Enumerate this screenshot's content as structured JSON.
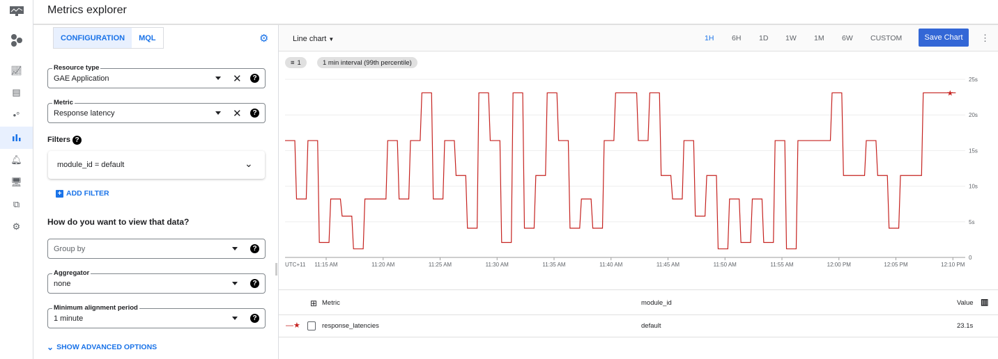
{
  "app": {
    "title": "Metrics explorer"
  },
  "nav": {
    "items": [
      "logo",
      "hexagons",
      "dashboards",
      "overview",
      "services",
      "metrics-explorer",
      "alerting",
      "uptime",
      "groups",
      "settings"
    ],
    "active": "metrics-explorer"
  },
  "config": {
    "tabs": [
      {
        "label": "CONFIGURATION",
        "selected": true
      },
      {
        "label": "MQL",
        "selected": false
      }
    ],
    "resource_type": {
      "label": "Resource type",
      "value": "GAE Application"
    },
    "metric": {
      "label": "Metric",
      "value": "Response latency"
    },
    "filters": {
      "label": "Filters",
      "items": [
        "module_id = default"
      ],
      "add_label": "ADD FILTER"
    },
    "view_heading": "How do you want to view that data?",
    "group_by": {
      "placeholder": "Group by"
    },
    "aggregator": {
      "label": "Aggregator",
      "value": "none"
    },
    "alignment": {
      "label": "Minimum alignment period",
      "value": "1 minute"
    },
    "advanced_label": "SHOW ADVANCED OPTIONS"
  },
  "toolbar": {
    "chart_type": "Line chart",
    "ranges": [
      "1H",
      "6H",
      "1D",
      "1W",
      "1M",
      "6W",
      "CUSTOM"
    ],
    "active_range": "1H",
    "save_label": "Save Chart",
    "filter_count": "1",
    "interval_chip": "1 min interval (99th percentile)"
  },
  "colors": {
    "accent": "#1a73e8",
    "series": "#c5221f",
    "save": "#3367d6"
  },
  "chart_data": {
    "type": "line",
    "timezone": "UTC+11",
    "ylim": [
      0,
      25
    ],
    "yticks": [
      "0",
      "5s",
      "10s",
      "15s",
      "20s",
      "25s"
    ],
    "xticks": [
      "11:15 AM",
      "11:20 AM",
      "11:25 AM",
      "11:30 AM",
      "11:35 AM",
      "11:40 AM",
      "11:45 AM",
      "11:50 AM",
      "11:55 AM",
      "12:00 PM",
      "12:05 PM",
      "12:10 PM"
    ],
    "grid": true,
    "step": true,
    "series": [
      {
        "name": "response_latencies",
        "x": [
          "11:12",
          "11:13",
          "11:14",
          "11:15",
          "11:16",
          "11:17",
          "11:18",
          "11:19",
          "11:20",
          "11:21",
          "11:22",
          "11:23",
          "11:24",
          "11:25",
          "11:26",
          "11:27",
          "11:28",
          "11:29",
          "11:30",
          "11:31",
          "11:32",
          "11:33",
          "11:34",
          "11:35",
          "11:36",
          "11:37",
          "11:38",
          "11:39",
          "11:40",
          "11:41",
          "11:42",
          "11:43",
          "11:44",
          "11:45",
          "11:46",
          "11:47",
          "11:48",
          "11:49",
          "11:50",
          "11:51",
          "11:52",
          "11:53",
          "11:54",
          "11:55",
          "11:56",
          "11:57",
          "11:58",
          "11:59",
          "12:00",
          "12:01",
          "12:02",
          "12:03",
          "12:04",
          "12:05",
          "12:06",
          "12:07",
          "12:08",
          "12:09",
          "12:10"
        ],
        "values": [
          16.4,
          8.2,
          16.4,
          2.1,
          8.2,
          5.8,
          1.2,
          8.2,
          8.2,
          16.4,
          8.2,
          16.4,
          23.1,
          8.2,
          16.4,
          11.5,
          4.1,
          23.1,
          16.4,
          2.1,
          23.1,
          4.1,
          11.5,
          23.1,
          16.4,
          4.1,
          8.2,
          4.1,
          16.4,
          23.1,
          23.1,
          16.4,
          23.1,
          11.5,
          8.2,
          16.4,
          5.8,
          11.5,
          1.2,
          8.2,
          2.1,
          8.2,
          2.1,
          16.4,
          1.2,
          16.4,
          16.4,
          16.4,
          23.1,
          11.5,
          11.5,
          16.4,
          11.5,
          4.1,
          11.5,
          11.5,
          23.1,
          23.1,
          23.1
        ]
      }
    ]
  },
  "table": {
    "headers": [
      "Metric",
      "module_id",
      "Value"
    ],
    "rows": [
      {
        "metric": "response_latencies",
        "module_id": "default",
        "value": "23.1s"
      }
    ]
  }
}
